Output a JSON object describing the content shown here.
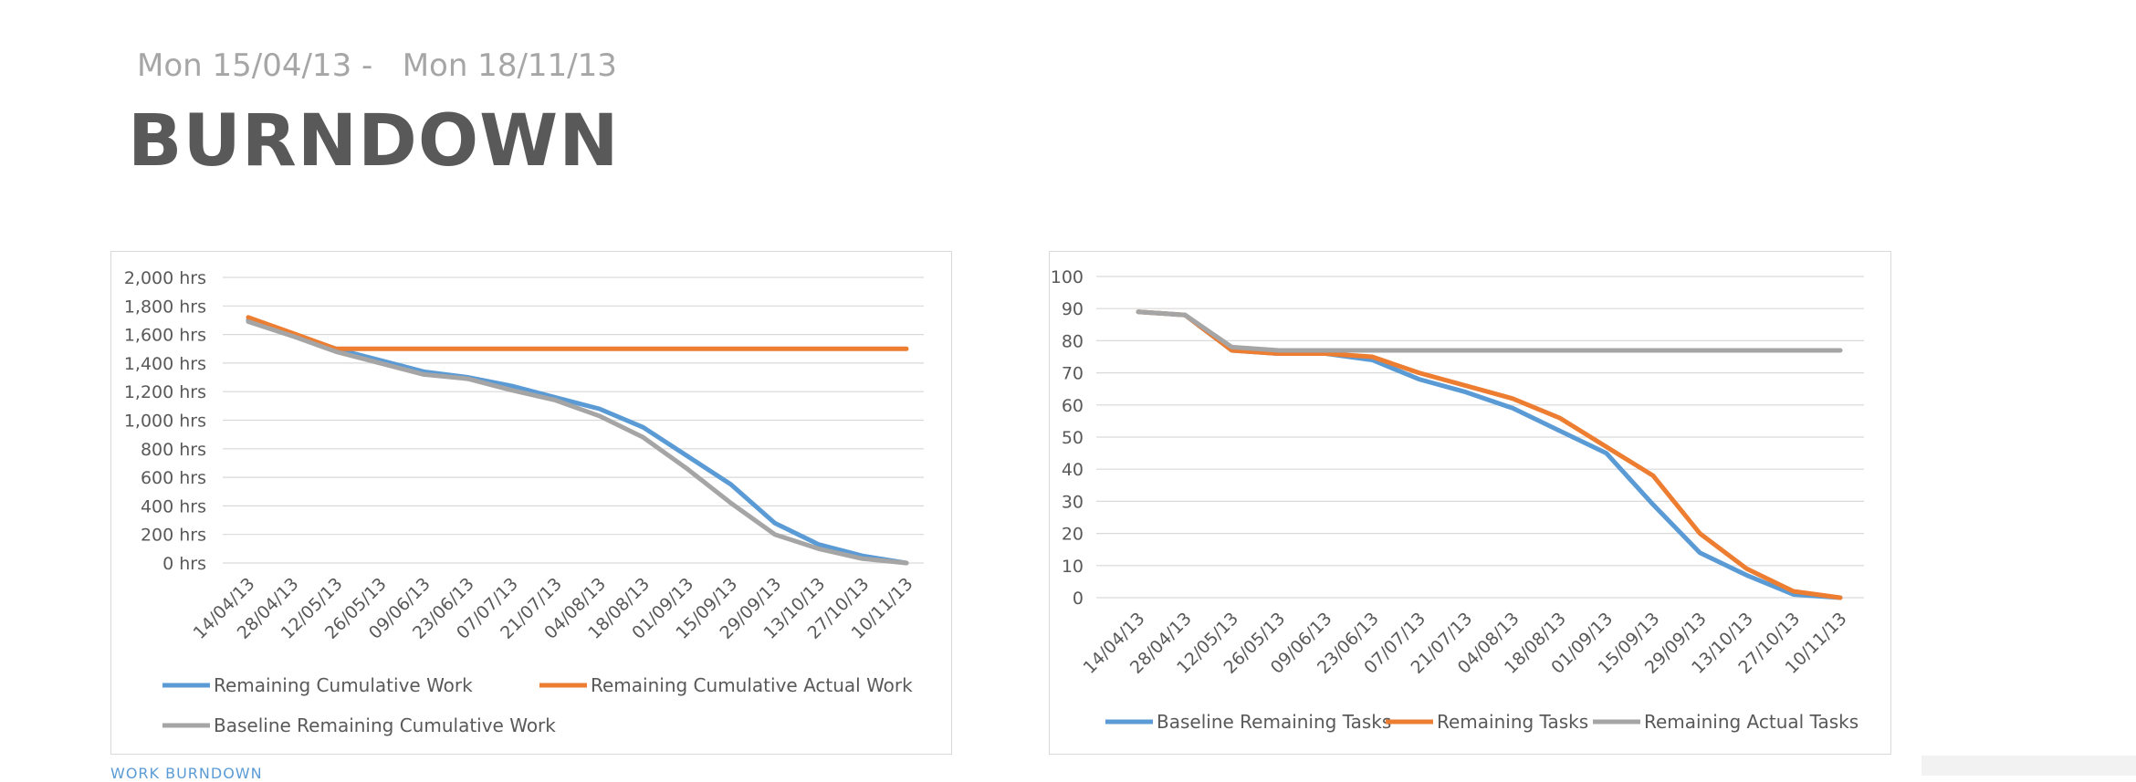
{
  "header": {
    "subtitle": "Mon 15/04/13 -   Mon 18/11/13",
    "title": "BURNDOWN"
  },
  "footer": {
    "link_text": "WORK BURNDOWN"
  },
  "colors": {
    "blue": "#5b9bd5",
    "orange": "#ed7d31",
    "gray": "#a5a5a5",
    "grid": "#d9d9d9",
    "text": "#595959"
  },
  "chart_data": [
    {
      "type": "line",
      "categories": [
        "14/04/13",
        "28/04/13",
        "12/05/13",
        "26/05/13",
        "09/06/13",
        "23/06/13",
        "07/07/13",
        "21/07/13",
        "04/08/13",
        "18/08/13",
        "01/09/13",
        "15/09/13",
        "29/09/13",
        "13/10/13",
        "27/10/13",
        "10/11/13"
      ],
      "yticks": [
        "0 hrs",
        "200 hrs",
        "400 hrs",
        "600 hrs",
        "800 hrs",
        "1,000 hrs",
        "1,200 hrs",
        "1,400 hrs",
        "1,600 hrs",
        "1,800 hrs",
        "2,000 hrs"
      ],
      "ylim": [
        0,
        2000
      ],
      "series": [
        {
          "name": "Remaining Cumulative Work",
          "color": "#5b9bd5",
          "values": [
            1700,
            1600,
            1500,
            1420,
            1340,
            1300,
            1240,
            1160,
            1080,
            950,
            750,
            550,
            280,
            130,
            50,
            0
          ]
        },
        {
          "name": "Remaining Cumulative Actual Work",
          "color": "#ed7d31",
          "values": [
            1720,
            1610,
            1500,
            1500,
            1500,
            1500,
            1500,
            1500,
            1500,
            1500,
            1500,
            1500,
            1500,
            1500,
            1500,
            1500
          ]
        },
        {
          "name": "Baseline Remaining Cumulative Work",
          "color": "#a5a5a5",
          "values": [
            1690,
            1590,
            1480,
            1400,
            1320,
            1290,
            1210,
            1140,
            1030,
            880,
            660,
            420,
            200,
            100,
            30,
            0
          ]
        }
      ],
      "legend": "bottom",
      "grid": true
    },
    {
      "type": "line",
      "categories": [
        "14/04/13",
        "28/04/13",
        "12/05/13",
        "26/05/13",
        "09/06/13",
        "23/06/13",
        "07/07/13",
        "21/07/13",
        "04/08/13",
        "18/08/13",
        "01/09/13",
        "15/09/13",
        "29/09/13",
        "13/10/13",
        "27/10/13",
        "10/11/13"
      ],
      "yticks": [
        "0",
        "10",
        "20",
        "30",
        "40",
        "50",
        "60",
        "70",
        "80",
        "90",
        "100"
      ],
      "ylim": [
        0,
        100
      ],
      "series": [
        {
          "name": "Baseline Remaining Tasks",
          "color": "#5b9bd5",
          "values": [
            89,
            88,
            77,
            76,
            76,
            74,
            68,
            64,
            59,
            52,
            45,
            29,
            14,
            7,
            1,
            0
          ]
        },
        {
          "name": "Remaining Tasks",
          "color": "#ed7d31",
          "values": [
            89,
            88,
            77,
            76,
            76,
            75,
            70,
            66,
            62,
            56,
            47,
            38,
            20,
            9,
            2,
            0
          ]
        },
        {
          "name": "Remaining Actual Tasks",
          "color": "#a5a5a5",
          "values": [
            89,
            88,
            78,
            77,
            77,
            77,
            77,
            77,
            77,
            77,
            77,
            77,
            77,
            77,
            77,
            77
          ]
        }
      ],
      "legend": "bottom",
      "grid": true
    }
  ]
}
